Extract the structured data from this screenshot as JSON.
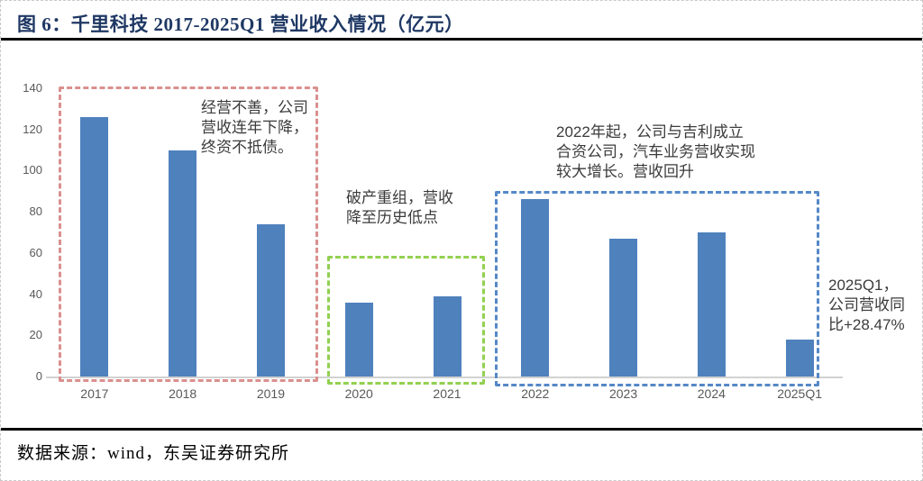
{
  "header": {
    "title": "图 6：千里科技 2017-2025Q1 营业收入情况（亿元）",
    "title_color": "#1F3864"
  },
  "chart_data": {
    "type": "bar",
    "title": "千里科技 2017-2025Q1 营业收入情况（亿元）",
    "unit": "亿元",
    "categories": [
      "2017",
      "2018",
      "2019",
      "2020",
      "2021",
      "2022",
      "2023",
      "2024",
      "2025Q1"
    ],
    "values": [
      126,
      110,
      74,
      36,
      39,
      86,
      67,
      70,
      18
    ],
    "ylim": [
      0,
      140
    ],
    "ytick_step": 20,
    "yticks": [
      0,
      20,
      40,
      60,
      80,
      100,
      120,
      140
    ],
    "bar_color": "#4F81BD",
    "grid": false,
    "legend": false
  },
  "annotations": {
    "phase1": {
      "text": "经营不善，公司\n营收连年下降，\n终资不抵债。",
      "box_color": "#D9908F",
      "covers": "2017-2019"
    },
    "phase2": {
      "text": "破产重组，营收\n降至历史低点",
      "box_color": "#92D050",
      "covers": "2020-2021"
    },
    "phase3": {
      "text": "2022年起，公司与吉利成立\n合资公司，汽车业务营收实现\n较大增长。营收回升",
      "box_color": "#5588C7",
      "covers": "2022-2025Q1"
    },
    "q1_note": {
      "text": "2025Q1，\n公司营收同\n比+28.47%"
    }
  },
  "footer": {
    "source": "数据来源：wind，东吴证券研究所"
  }
}
